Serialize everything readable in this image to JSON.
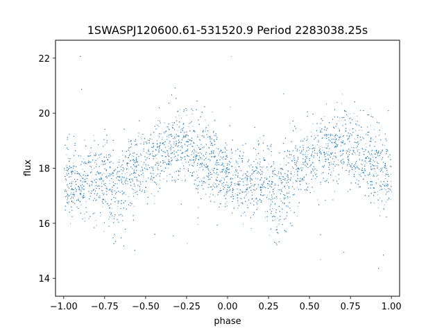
{
  "chart_data": {
    "type": "scatter",
    "title": "1SWASPJ120600.61-531520.9 Period 2283038.25s",
    "xlabel": "phase",
    "ylabel": "flux",
    "xlim": [
      -1.05,
      1.05
    ],
    "ylim": [
      13.35,
      22.65
    ],
    "xticks": [
      -1.0,
      -0.75,
      -0.5,
      -0.25,
      0.0,
      0.25,
      0.5,
      0.75,
      1.0
    ],
    "xtick_labels": [
      "−1.00",
      "−0.75",
      "−0.50",
      "−0.25",
      "0.00",
      "0.25",
      "0.50",
      "0.75",
      "1.00"
    ],
    "yticks": [
      14,
      16,
      18,
      20,
      22
    ],
    "ytick_labels": [
      "14",
      "16",
      "18",
      "20",
      "22"
    ],
    "grid": false,
    "color": "#1f77b4",
    "series": [
      {
        "phase_range": [
          -1.0,
          1.0
        ],
        "approx_points": 20000,
        "profile": {
          "phase": [
            -1.0,
            -0.9,
            -0.8,
            -0.75,
            -0.7,
            -0.6,
            -0.5,
            -0.4,
            -0.3,
            -0.25,
            -0.2,
            -0.1,
            0.0,
            0.1,
            0.2,
            0.25,
            0.3,
            0.4,
            0.5,
            0.6,
            0.7,
            0.75,
            0.8,
            0.9,
            1.0
          ],
          "median_flux": [
            17.6,
            17.4,
            17.6,
            17.5,
            17.3,
            17.8,
            18.3,
            18.6,
            18.9,
            18.8,
            18.6,
            18.2,
            17.6,
            17.4,
            17.6,
            17.5,
            17.3,
            17.8,
            18.3,
            18.6,
            18.9,
            18.8,
            18.6,
            18.2,
            17.6
          ],
          "spread": [
            0.6,
            0.6,
            0.7,
            0.7,
            0.7,
            0.7,
            0.7,
            0.7,
            0.7,
            0.7,
            0.7,
            0.7,
            0.6,
            0.6,
            0.7,
            0.7,
            0.7,
            0.7,
            0.7,
            0.7,
            0.7,
            0.7,
            0.7,
            0.7,
            0.6
          ]
        },
        "dip_centers": [
          -0.7,
          0.3
        ],
        "dip_min_flux": 15.2,
        "outlier_range": [
          13.8,
          22.3
        ]
      }
    ]
  }
}
